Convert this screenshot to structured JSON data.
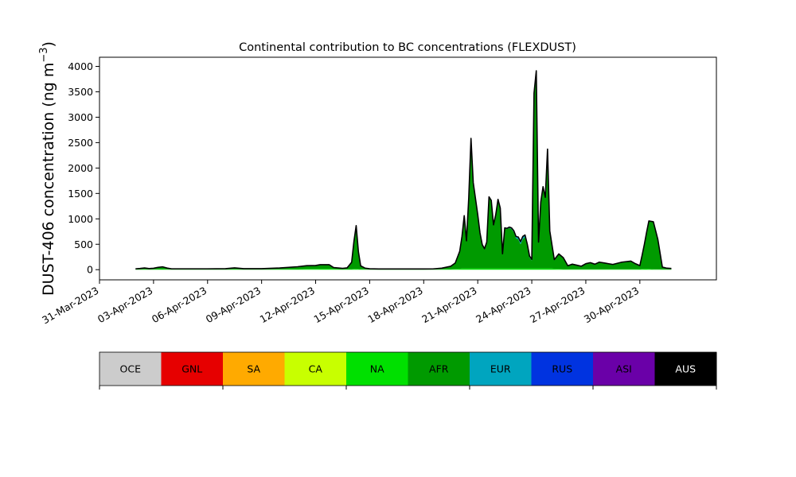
{
  "chart_data": {
    "type": "area",
    "title": "Continental contribution to BC concentrations (FLEXDUST)",
    "ylabel": "DUST-406 concentration (ng m",
    "ylabel_exponent": "−3",
    "ylabel_close": ")",
    "xlabel": "",
    "ylim": [
      -200,
      4180
    ],
    "xlim": [
      "2023-03-31T00:00",
      "2023-05-04T06:00"
    ],
    "y_ticks": [
      0,
      500,
      1000,
      1500,
      2000,
      2500,
      3000,
      3500,
      4000
    ],
    "y_tick_labels": [
      "0",
      "500",
      "1000",
      "1500",
      "2000",
      "2500",
      "3000",
      "3500",
      "4000"
    ],
    "x_ticks": [
      "2023-03-31",
      "2023-04-03",
      "2023-04-06",
      "2023-04-09",
      "2023-04-12",
      "2023-04-15",
      "2023-04-18",
      "2023-04-21",
      "2023-04-24",
      "2023-04-27",
      "2023-04-30"
    ],
    "x_tick_labels": [
      "31-Mar-2023",
      "03-Apr-2023",
      "06-Apr-2023",
      "09-Apr-2023",
      "12-Apr-2023",
      "15-Apr-2023",
      "18-Apr-2023",
      "21-Apr-2023",
      "24-Apr-2023",
      "27-Apr-2023",
      "30-Apr-2023"
    ],
    "grid": false,
    "legend": "colorbar-below",
    "x": [
      "2023-04-02T00:00",
      "2023-04-02T06:00",
      "2023-04-02T12:00",
      "2023-04-02T18:00",
      "2023-04-03T00:00",
      "2023-04-03T06:00",
      "2023-04-03T12:00",
      "2023-04-03T18:00",
      "2023-04-04T00:00",
      "2023-04-05T00:00",
      "2023-04-06T00:00",
      "2023-04-07T00:00",
      "2023-04-07T12:00",
      "2023-04-08T00:00",
      "2023-04-09T00:00",
      "2023-04-10T00:00",
      "2023-04-11T00:00",
      "2023-04-11T12:00",
      "2023-04-12T00:00",
      "2023-04-12T06:00",
      "2023-04-12T18:00",
      "2023-04-13T00:00",
      "2023-04-13T12:00",
      "2023-04-13T18:00",
      "2023-04-14T00:00",
      "2023-04-14T03:00",
      "2023-04-14T06:00",
      "2023-04-14T09:00",
      "2023-04-14T12:00",
      "2023-04-14T18:00",
      "2023-04-15T00:00",
      "2023-04-15T12:00",
      "2023-04-16T00:00",
      "2023-04-17T00:00",
      "2023-04-18T00:00",
      "2023-04-18T12:00",
      "2023-04-19T00:00",
      "2023-04-19T12:00",
      "2023-04-19T18:00",
      "2023-04-20T00:00",
      "2023-04-20T03:00",
      "2023-04-20T06:00",
      "2023-04-20T09:00",
      "2023-04-20T12:00",
      "2023-04-20T15:00",
      "2023-04-20T18:00",
      "2023-04-21T00:00",
      "2023-04-21T03:00",
      "2023-04-21T06:00",
      "2023-04-21T09:00",
      "2023-04-21T12:00",
      "2023-04-21T15:00",
      "2023-04-21T18:00",
      "2023-04-21T21:00",
      "2023-04-22T00:00",
      "2023-04-22T03:00",
      "2023-04-22T06:00",
      "2023-04-22T09:00",
      "2023-04-22T12:00",
      "2023-04-22T15:00",
      "2023-04-22T18:00",
      "2023-04-22T21:00",
      "2023-04-23T00:00",
      "2023-04-23T03:00",
      "2023-04-23T06:00",
      "2023-04-23T09:00",
      "2023-04-23T12:00",
      "2023-04-23T15:00",
      "2023-04-23T18:00",
      "2023-04-23T21:00",
      "2023-04-24T00:00",
      "2023-04-24T03:00",
      "2023-04-24T06:00",
      "2023-04-24T09:00",
      "2023-04-24T12:00",
      "2023-04-24T15:00",
      "2023-04-24T18:00",
      "2023-04-24T21:00",
      "2023-04-25T00:00",
      "2023-04-25T06:00",
      "2023-04-25T12:00",
      "2023-04-25T18:00",
      "2023-04-26T00:00",
      "2023-04-26T06:00",
      "2023-04-26T12:00",
      "2023-04-26T18:00",
      "2023-04-27T00:00",
      "2023-04-27T06:00",
      "2023-04-27T12:00",
      "2023-04-27T18:00",
      "2023-04-28T00:00",
      "2023-04-28T12:00",
      "2023-04-29T00:00",
      "2023-04-29T12:00",
      "2023-04-29T18:00",
      "2023-04-30T00:00",
      "2023-04-30T03:00",
      "2023-04-30T06:00",
      "2023-04-30T09:00",
      "2023-04-30T12:00",
      "2023-04-30T18:00",
      "2023-05-01T00:00",
      "2023-05-01T06:00",
      "2023-05-01T12:00",
      "2023-05-01T18:00"
    ],
    "series": [
      {
        "name": "NA",
        "color": "#00e000",
        "values": [
          5,
          6,
          8,
          6,
          8,
          10,
          12,
          8,
          5,
          5,
          5,
          6,
          8,
          6,
          6,
          8,
          12,
          15,
          15,
          18,
          20,
          15,
          10,
          10,
          12,
          15,
          18,
          14,
          10,
          8,
          6,
          5,
          5,
          5,
          5,
          5,
          8,
          12,
          15,
          20,
          22,
          25,
          25,
          25,
          25,
          25,
          25,
          25,
          25,
          25,
          25,
          25,
          25,
          25,
          25,
          25,
          25,
          25,
          25,
          25,
          25,
          25,
          25,
          25,
          25,
          25,
          25,
          25,
          25,
          25,
          25,
          25,
          25,
          25,
          25,
          25,
          25,
          25,
          25,
          20,
          15,
          12,
          10,
          10,
          10,
          10,
          10,
          10,
          10,
          10,
          10,
          10,
          10,
          10,
          10,
          12,
          15,
          20,
          18,
          15,
          10,
          8,
          6,
          5,
          5
        ]
      },
      {
        "name": "AFR",
        "color": "#009a00",
        "values": [
          8,
          14,
          22,
          12,
          16,
          30,
          38,
          20,
          8,
          8,
          8,
          10,
          22,
          10,
          10,
          20,
          38,
          55,
          60,
          72,
          70,
          20,
          10,
          20,
          128,
          530,
          840,
          330,
          60,
          18,
          8,
          5,
          5,
          5,
          5,
          6,
          17,
          48,
          105,
          330,
          620,
          1025,
          530,
          1375,
          2545,
          1675,
          1045,
          685,
          455,
          375,
          505,
          1395,
          1325,
          845,
          1045,
          1345,
          1175,
          275,
          785,
          775,
          795,
          775,
          715,
          595,
          575,
          475,
          575,
          615,
          445,
          215,
          155,
          3435,
          3875,
          505,
          1295,
          1595,
          1385,
          2335,
          725,
          165,
          285,
          215,
          60,
          90,
          70,
          50,
          100,
          120,
          90,
          130,
          115,
          85,
          130,
          150,
          100,
          60,
          260,
          470,
          710,
          935,
          925,
          580,
          40,
          20,
          15
        ]
      },
      {
        "name": "EUR",
        "color": "#00a5bf",
        "values": [
          2,
          2,
          2,
          2,
          2,
          3,
          3,
          2,
          2,
          2,
          2,
          2,
          3,
          2,
          2,
          3,
          5,
          5,
          5,
          5,
          5,
          4,
          3,
          3,
          4,
          5,
          5,
          4,
          3,
          2,
          2,
          2,
          2,
          2,
          2,
          2,
          3,
          5,
          8,
          10,
          10,
          10,
          10,
          10,
          10,
          10,
          10,
          10,
          10,
          10,
          10,
          10,
          10,
          10,
          10,
          10,
          10,
          10,
          10,
          10,
          15,
          20,
          25,
          30,
          40,
          50,
          50,
          40,
          30,
          25,
          20,
          10,
          10,
          10,
          10,
          10,
          10,
          10,
          10,
          10,
          8,
          6,
          5,
          5,
          5,
          5,
          5,
          5,
          5,
          5,
          5,
          5,
          5,
          5,
          5,
          5,
          5,
          5,
          5,
          5,
          5,
          4,
          3,
          2,
          2
        ]
      },
      {
        "name": "RUS",
        "color": "#0033e0",
        "values": [
          2,
          2,
          2,
          2,
          2,
          3,
          3,
          2,
          2,
          2,
          2,
          2,
          3,
          2,
          2,
          3,
          3,
          3,
          3,
          3,
          3,
          3,
          3,
          3,
          3,
          3,
          3,
          3,
          3,
          2,
          2,
          2,
          2,
          2,
          2,
          2,
          2,
          2,
          2,
          3,
          3,
          3,
          3,
          3,
          3,
          3,
          3,
          3,
          3,
          3,
          3,
          3,
          3,
          3,
          3,
          3,
          3,
          3,
          3,
          3,
          3,
          3,
          3,
          3,
          3,
          3,
          3,
          3,
          3,
          3,
          3,
          3,
          3,
          3,
          3,
          3,
          3,
          3,
          3,
          3,
          3,
          3,
          3,
          3,
          3,
          3,
          3,
          3,
          3,
          3,
          3,
          3,
          3,
          3,
          3,
          3,
          3,
          3,
          3,
          3,
          3,
          2,
          2,
          2,
          2
        ]
      }
    ],
    "colorbar": {
      "labels": [
        "OCE",
        "GNL",
        "SA",
        "CA",
        "NA",
        "AFR",
        "EUR",
        "RUS",
        "ASI",
        "AUS"
      ],
      "colors": [
        "#cccccc",
        "#e60000",
        "#ffaa00",
        "#c8ff00",
        "#00e000",
        "#009a00",
        "#00a5bf",
        "#0033e0",
        "#6a00a8",
        "#000000"
      ],
      "text_colors": [
        "#000000",
        "#000000",
        "#000000",
        "#000000",
        "#000000",
        "#000000",
        "#000000",
        "#000000",
        "#000000",
        "#ffffff"
      ]
    },
    "total_line_color": "#000000"
  }
}
